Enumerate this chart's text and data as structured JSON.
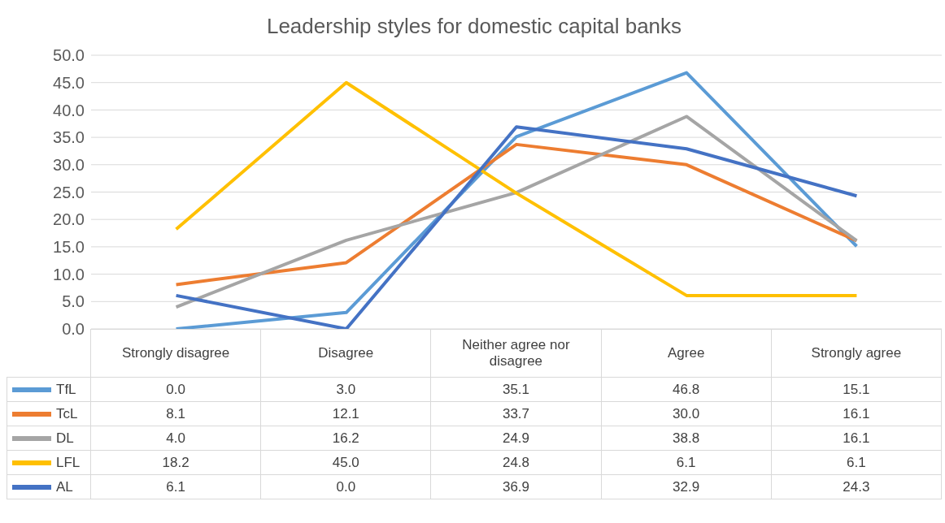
{
  "chart_data": {
    "type": "line",
    "title": "Leadership styles for domestic capital banks",
    "categories": [
      "Strongly disagree",
      "Disagree",
      "Neither agree nor disagree",
      "Agree",
      "Strongly agree"
    ],
    "series": [
      {
        "name": "TfL",
        "color": "#5b9bd5",
        "values": [
          0.0,
          3.0,
          35.1,
          46.8,
          15.1
        ],
        "value_labels": [
          "0.0",
          "3.0",
          "35.1",
          "46.8",
          "15.1"
        ]
      },
      {
        "name": "TcL",
        "color": "#ed7d31",
        "values": [
          8.1,
          12.1,
          33.7,
          30.0,
          16.1
        ],
        "value_labels": [
          "8.1",
          "12.1",
          "33.7",
          "30.0",
          "16.1"
        ]
      },
      {
        "name": "DL",
        "color": "#a5a5a5",
        "values": [
          4.0,
          16.2,
          24.9,
          38.8,
          16.1
        ],
        "value_labels": [
          "4.0",
          "16.2",
          "24.9",
          "38.8",
          "16.1"
        ]
      },
      {
        "name": "LFL",
        "color": "#ffc000",
        "values": [
          18.2,
          45.0,
          24.8,
          6.1,
          6.1
        ],
        "value_labels": [
          "18.2",
          "45.0",
          "24.8",
          "6.1",
          "6.1"
        ]
      },
      {
        "name": "AL",
        "color": "#4472c4",
        "values": [
          6.1,
          0.0,
          36.9,
          32.9,
          24.3
        ],
        "value_labels": [
          "6.1",
          "0.0",
          "36.9",
          "32.9",
          "24.3"
        ]
      }
    ],
    "ylim": [
      0,
      50
    ],
    "yticks": [
      {
        "value": 0,
        "label": "0.0"
      },
      {
        "value": 5,
        "label": "5.0"
      },
      {
        "value": 10,
        "label": "10.0"
      },
      {
        "value": 15,
        "label": "15.0"
      },
      {
        "value": 20,
        "label": "20.0"
      },
      {
        "value": 25,
        "label": "25.0"
      },
      {
        "value": 30,
        "label": "30.0"
      },
      {
        "value": 35,
        "label": "35.0"
      },
      {
        "value": 40,
        "label": "40.0"
      },
      {
        "value": 45,
        "label": "45.0"
      },
      {
        "value": 50,
        "label": "50.0"
      }
    ],
    "grid": "y",
    "legend": "bottom",
    "marker": "none",
    "line_style": "solid"
  }
}
